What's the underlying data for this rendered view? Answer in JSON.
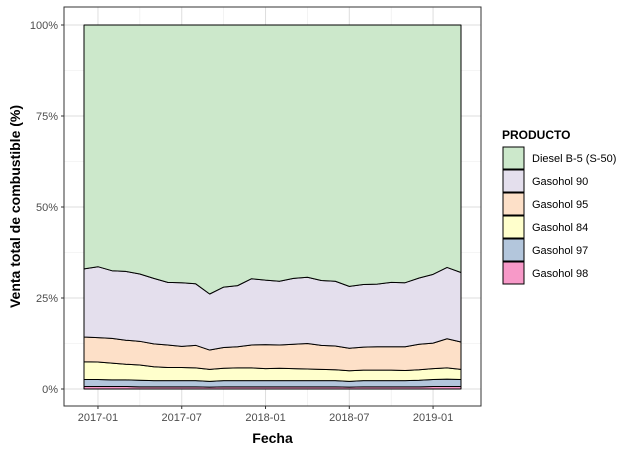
{
  "chart_data": {
    "type": "area",
    "stacked": true,
    "normalized": true,
    "xlabel": "Fecha",
    "ylabel": "Venta total de combustible (%)",
    "x": [
      "2016-12",
      "2017-01",
      "2017-02",
      "2017-03",
      "2017-04",
      "2017-05",
      "2017-06",
      "2017-07",
      "2017-08",
      "2017-09",
      "2017-10",
      "2017-11",
      "2017-12",
      "2018-01",
      "2018-02",
      "2018-03",
      "2018-04",
      "2018-05",
      "2018-06",
      "2018-07",
      "2018-08",
      "2018-09",
      "2018-10",
      "2018-11",
      "2018-12",
      "2019-01",
      "2019-02",
      "2019-03"
    ],
    "x_ticks": [
      "2017-01",
      "2017-07",
      "2018-01",
      "2018-07",
      "2019-01"
    ],
    "y_ticks": [
      "0%",
      "25%",
      "50%",
      "75%",
      "100%"
    ],
    "ylim": [
      0,
      100
    ],
    "grid": true,
    "legend": {
      "title": "PRODUCTO",
      "position": "right"
    },
    "series": [
      {
        "name": "Gasohol 98",
        "color": "#f799c8",
        "values": [
          0.7,
          0.7,
          0.7,
          0.7,
          0.6,
          0.6,
          0.6,
          0.6,
          0.6,
          0.5,
          0.6,
          0.6,
          0.6,
          0.6,
          0.6,
          0.6,
          0.6,
          0.6,
          0.6,
          0.5,
          0.6,
          0.6,
          0.6,
          0.6,
          0.6,
          0.7,
          0.7,
          0.7
        ]
      },
      {
        "name": "Gasohol 97",
        "color": "#b3c6dc",
        "values": [
          1.9,
          1.9,
          1.8,
          1.8,
          1.8,
          1.7,
          1.7,
          1.7,
          1.7,
          1.6,
          1.7,
          1.7,
          1.7,
          1.7,
          1.7,
          1.7,
          1.7,
          1.7,
          1.7,
          1.6,
          1.7,
          1.7,
          1.7,
          1.7,
          1.8,
          1.9,
          2.0,
          1.9
        ]
      },
      {
        "name": "Gasohol 84",
        "color": "#ffffcc",
        "values": [
          4.9,
          4.8,
          4.6,
          4.3,
          4.2,
          3.8,
          3.6,
          3.6,
          3.5,
          3.3,
          3.4,
          3.5,
          3.5,
          3.3,
          3.4,
          3.3,
          3.2,
          3.1,
          3.0,
          2.9,
          2.9,
          2.9,
          2.9,
          2.8,
          2.9,
          3.0,
          3.1,
          2.8
        ]
      },
      {
        "name": "Gasohol 95",
        "color": "#fde0c8",
        "values": [
          6.8,
          6.7,
          6.8,
          6.6,
          6.5,
          6.3,
          6.2,
          5.8,
          6.2,
          5.3,
          5.7,
          5.8,
          6.3,
          6.6,
          6.4,
          6.7,
          7.0,
          6.6,
          6.5,
          6.2,
          6.3,
          6.4,
          6.4,
          6.5,
          7.0,
          7.0,
          8.0,
          7.5
        ]
      },
      {
        "name": "Gasohol 90",
        "color": "#e4dfed",
        "values": [
          18.7,
          19.5,
          18.6,
          18.9,
          18.5,
          18.0,
          17.2,
          17.5,
          16.9,
          15.4,
          16.6,
          16.8,
          18.2,
          17.7,
          17.5,
          18.1,
          18.2,
          17.8,
          17.8,
          17.0,
          17.2,
          17.2,
          17.7,
          17.6,
          18.2,
          18.9,
          19.6,
          19.1
        ]
      },
      {
        "name": "Diesel B-5 (S-50)",
        "color": "#cce8cb",
        "values": [
          67.0,
          66.4,
          67.5,
          67.7,
          68.4,
          69.6,
          70.7,
          70.8,
          71.1,
          73.9,
          72.0,
          71.6,
          69.7,
          70.1,
          70.4,
          69.6,
          69.3,
          70.2,
          70.4,
          71.8,
          71.3,
          71.2,
          70.7,
          70.8,
          69.5,
          68.5,
          66.6,
          68.0
        ]
      }
    ]
  }
}
